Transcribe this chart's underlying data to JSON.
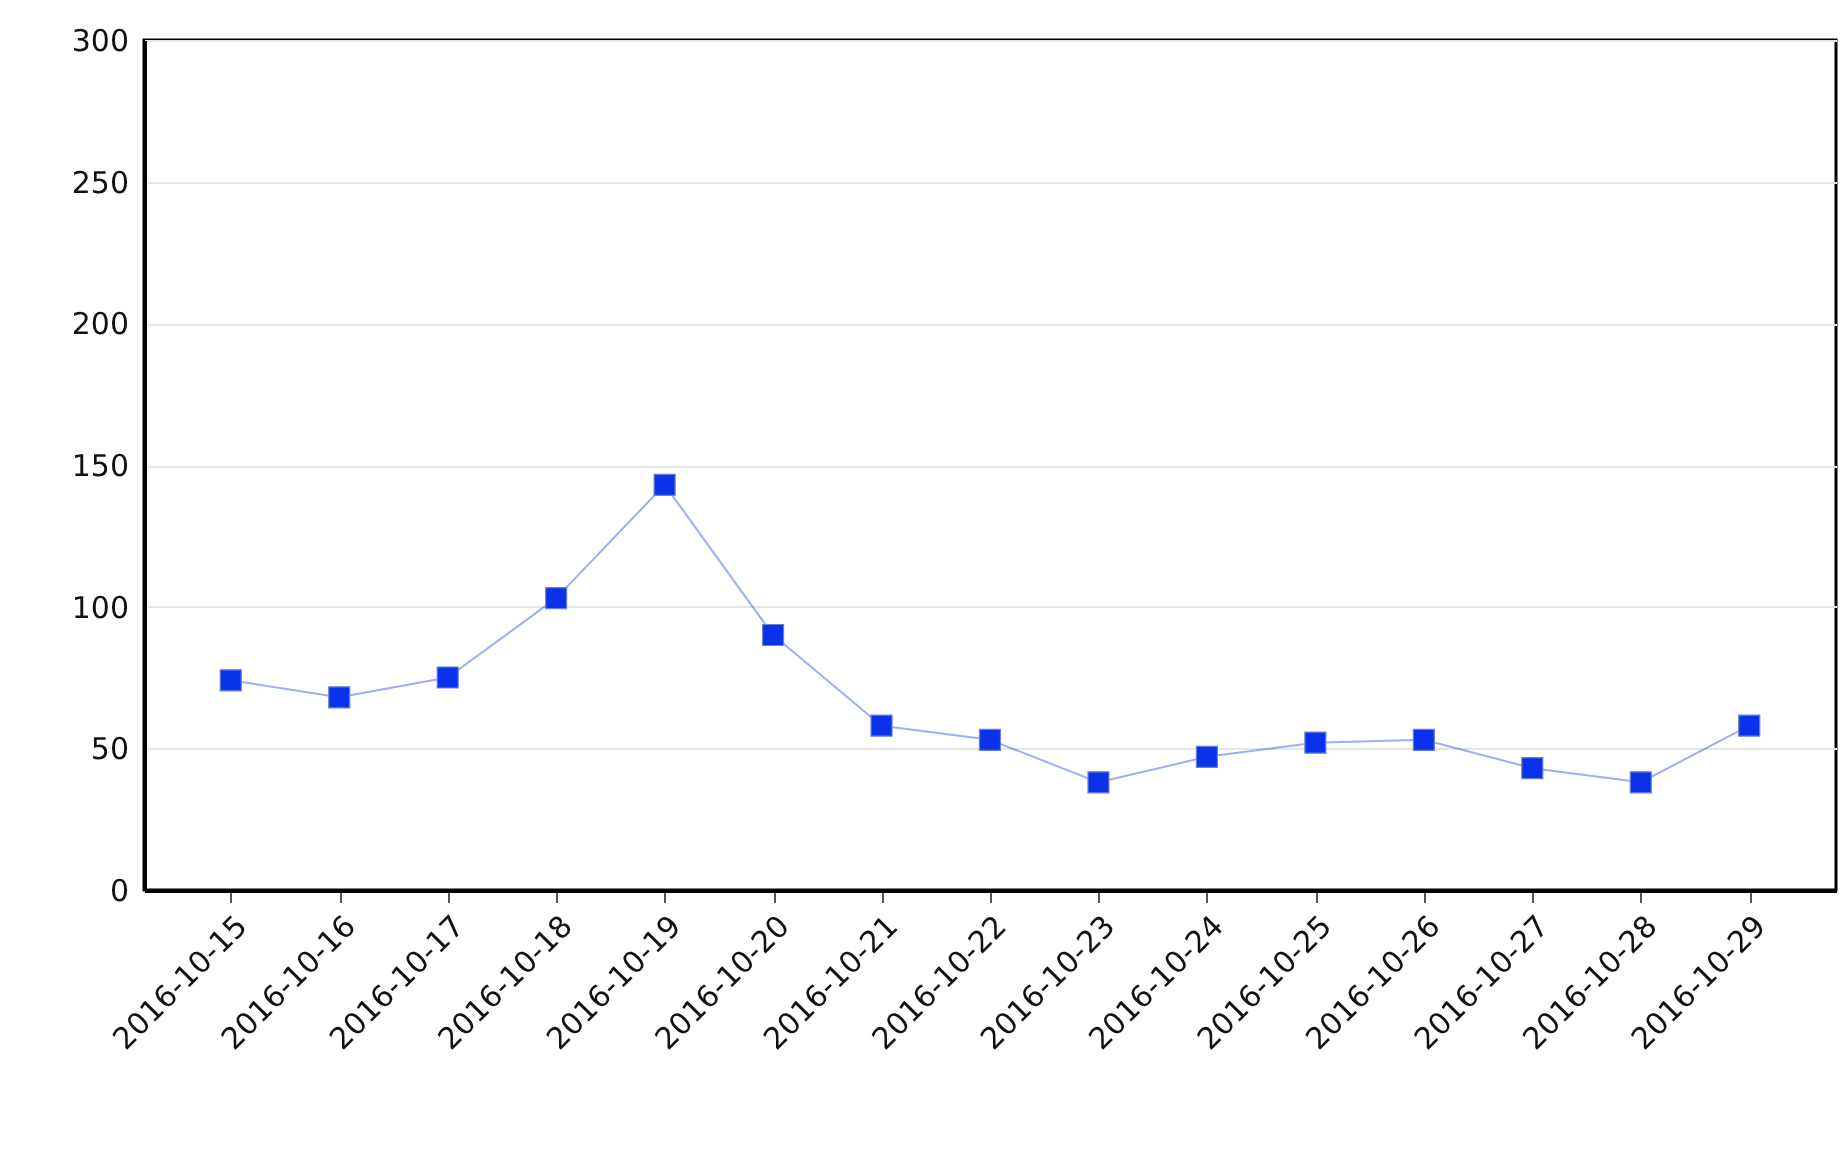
{
  "chart_data": {
    "type": "line",
    "categories": [
      "2016-10-15",
      "2016-10-16",
      "2016-10-17",
      "2016-10-18",
      "2016-10-19",
      "2016-10-20",
      "2016-10-21",
      "2016-10-22",
      "2016-10-23",
      "2016-10-24",
      "2016-10-25",
      "2016-10-26",
      "2016-10-27",
      "2016-10-28",
      "2016-10-29"
    ],
    "series": [
      {
        "color": "#0a32e8",
        "values": [
          74,
          68,
          75,
          103,
          143,
          90,
          58,
          53,
          38,
          47,
          52,
          53,
          43,
          38,
          58
        ]
      }
    ],
    "ylim": [
      0,
      300
    ],
    "yticks": [
      0,
      50,
      100,
      150,
      200,
      250,
      300
    ],
    "grid": "y",
    "marker": "square",
    "line_style": "solid",
    "legend": false
  }
}
